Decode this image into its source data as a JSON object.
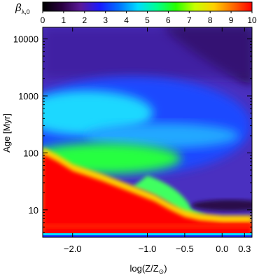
{
  "chart_data": {
    "type": "heatmap",
    "title": "",
    "colorbar": {
      "label_main": "β",
      "label_sub": "λ,0",
      "range": [
        0,
        10
      ],
      "ticks": [
        "0",
        "1",
        "2",
        "3",
        "4",
        "5",
        "6",
        "7",
        "8",
        "9",
        "10"
      ],
      "colormap": [
        "#000000",
        "#2a0040",
        "#5a1a9a",
        "#1a1aff",
        "#0070ff",
        "#00dcff",
        "#00ff90",
        "#28ff00",
        "#c8ff00",
        "#ffd000",
        "#ff6a00",
        "#ff0000"
      ]
    },
    "x_axis": {
      "label_main": "log(Z/Z",
      "label_sub": "⊙",
      "label_end": ")",
      "range": [
        -2.4,
        0.4
      ],
      "ticks": [
        {
          "value": -2.0,
          "label": "−2.0"
        },
        {
          "value": -1.0,
          "label": "−1.0"
        },
        {
          "value": -0.5,
          "label": "−0.5"
        },
        {
          "value": 0.0,
          "label": "0.0"
        },
        {
          "value": 0.3,
          "label": "0.3"
        }
      ]
    },
    "y_axis": {
      "label": "Age [Myr]",
      "scale": "log",
      "range": [
        3.3,
        16000
      ],
      "ticks": [
        {
          "value": 10,
          "label": "10"
        },
        {
          "value": 100,
          "label": "100"
        },
        {
          "value": 1000,
          "label": "1000"
        },
        {
          "value": 10000,
          "label": "10000"
        }
      ]
    },
    "features": {
      "red_boundary": [
        {
          "z": -2.4,
          "age": 95
        },
        {
          "z": -2.2,
          "age": 70
        },
        {
          "z": -2.0,
          "age": 48
        },
        {
          "z": -1.6,
          "age": 32
        },
        {
          "z": -1.2,
          "age": 20
        },
        {
          "z": -0.9,
          "age": 14
        },
        {
          "z": -0.7,
          "age": 10
        },
        {
          "z": -0.5,
          "age": 7.5
        },
        {
          "z": -0.3,
          "age": 6.5
        },
        {
          "z": 0.0,
          "age": 6
        },
        {
          "z": 0.4,
          "age": 6
        }
      ],
      "cyan_blob_center": {
        "z": -2.0,
        "age": 500
      },
      "green_band_center": {
        "z": -1.3,
        "age": 80
      },
      "thin_red_band_age": 5.2,
      "dark_patch_center": {
        "z": 0.2,
        "age": 12
      }
    }
  }
}
